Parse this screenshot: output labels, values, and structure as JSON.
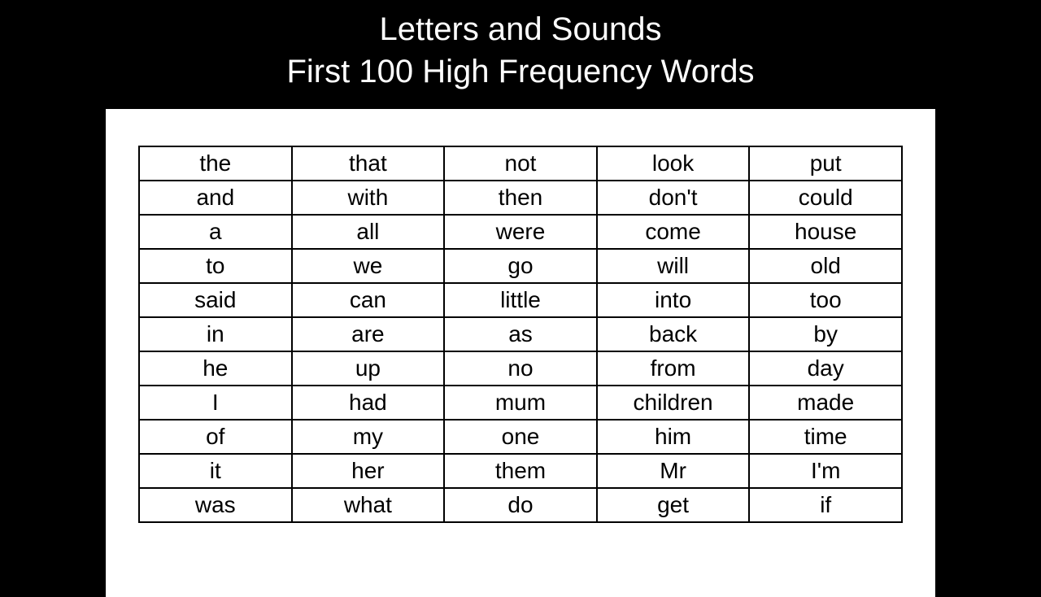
{
  "header": {
    "line1": "Letters and Sounds",
    "line2": "First 100 High Frequency Words"
  },
  "table": {
    "columns": 5,
    "rows": [
      [
        "the",
        "that",
        "not",
        "look",
        "put"
      ],
      [
        "and",
        "with",
        "then",
        "don't",
        "could"
      ],
      [
        "a",
        "all",
        "were",
        "come",
        "house"
      ],
      [
        "to",
        "we",
        "go",
        "will",
        "old"
      ],
      [
        "said",
        "can",
        "little",
        "into",
        "too"
      ],
      [
        "in",
        "are",
        "as",
        "back",
        "by"
      ],
      [
        "he",
        "up",
        "no",
        "from",
        "day"
      ],
      [
        "I",
        "had",
        "mum",
        "children",
        "made"
      ],
      [
        "of",
        "my",
        "one",
        "him",
        "time"
      ],
      [
        "it",
        "her",
        "them",
        "Mr",
        "I'm"
      ],
      [
        "was",
        "what",
        "do",
        "get",
        "if"
      ]
    ],
    "border_color": "#000000",
    "cell_fontsize": 28,
    "text_color": "#000000",
    "background_color": "#ffffff"
  },
  "colors": {
    "page_background": "#000000",
    "paper_background": "#ffffff",
    "header_text": "#ffffff"
  }
}
